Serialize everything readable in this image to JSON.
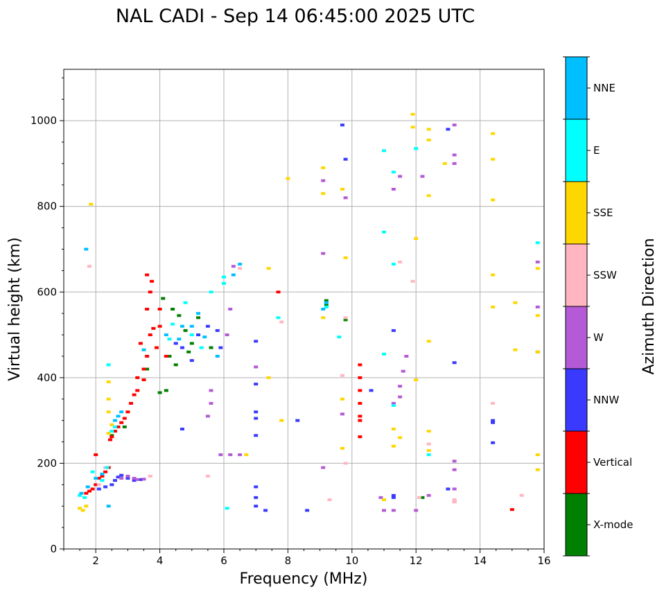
{
  "chart_data": {
    "type": "scatter",
    "title": "NAL CADI - Sep 14 06:45:00 2025 UTC",
    "xlabel": "Frequency (MHz)",
    "ylabel": "Virtual height (km)",
    "xlim": [
      1,
      16
    ],
    "ylim": [
      0,
      1120
    ],
    "xticks": [
      2,
      4,
      6,
      8,
      10,
      12,
      14,
      16
    ],
    "yticks": [
      0,
      200,
      400,
      600,
      800,
      1000
    ],
    "xtick_labels": [
      "2",
      "4",
      "6",
      "8",
      "10",
      "12",
      "14",
      "16"
    ],
    "ytick_labels": [
      "0",
      "200",
      "400",
      "600",
      "800",
      "1000"
    ],
    "grid": true,
    "colorbar": {
      "label": "Azimuth Direction",
      "categories": [
        {
          "name": "X-mode",
          "color": "#008000"
        },
        {
          "name": "Vertical",
          "color": "#ff0000"
        },
        {
          "name": "NNW",
          "color": "#3a3aff"
        },
        {
          "name": "W",
          "color": "#b45ad6"
        },
        {
          "name": "SSW",
          "color": "#ffb6c1"
        },
        {
          "name": "SSE",
          "color": "#ffd700"
        },
        {
          "name": "E",
          "color": "#00ffff"
        },
        {
          "name": "NNE",
          "color": "#00bfff"
        }
      ]
    },
    "series": [
      {
        "name": "X-mode",
        "points": [
          [
            4.3,
            450
          ],
          [
            4.5,
            430
          ],
          [
            4.6,
            545
          ],
          [
            4.4,
            560
          ],
          [
            4.8,
            510
          ],
          [
            5.0,
            480
          ],
          [
            5.2,
            540
          ],
          [
            4.2,
            370
          ],
          [
            4.0,
            365
          ],
          [
            3.6,
            420
          ],
          [
            2.5,
            265
          ],
          [
            2.9,
            285
          ],
          [
            12.2,
            120
          ],
          [
            15.8,
            460
          ],
          [
            9.2,
            570
          ],
          [
            9.2,
            580
          ],
          [
            9.8,
            535
          ],
          [
            4.1,
            585
          ],
          [
            5.6,
            470
          ],
          [
            4.9,
            460
          ]
        ]
      },
      {
        "name": "Vertical",
        "points": [
          [
            3.5,
            420
          ],
          [
            3.6,
            450
          ],
          [
            3.4,
            480
          ],
          [
            3.3,
            400
          ],
          [
            3.2,
            360
          ],
          [
            3.1,
            340
          ],
          [
            3.0,
            320
          ],
          [
            2.9,
            305
          ],
          [
            2.8,
            295
          ],
          [
            2.7,
            285
          ],
          [
            2.6,
            275
          ],
          [
            2.5,
            262
          ],
          [
            2.45,
            255
          ],
          [
            3.7,
            500
          ],
          [
            3.8,
            515
          ],
          [
            3.6,
            560
          ],
          [
            3.7,
            600
          ],
          [
            3.75,
            625
          ],
          [
            3.6,
            640
          ],
          [
            3.9,
            470
          ],
          [
            4.0,
            560
          ],
          [
            4.0,
            520
          ],
          [
            4.2,
            450
          ],
          [
            3.5,
            395
          ],
          [
            3.3,
            370
          ],
          [
            2.4,
            190
          ],
          [
            2.3,
            180
          ],
          [
            2.2,
            170
          ],
          [
            2.0,
            150
          ],
          [
            1.9,
            140
          ],
          [
            1.8,
            135
          ],
          [
            1.7,
            130
          ],
          [
            2.1,
            165
          ],
          [
            2.0,
            220
          ],
          [
            10.25,
            430
          ],
          [
            10.25,
            400
          ],
          [
            10.25,
            370
          ],
          [
            10.25,
            340
          ],
          [
            10.25,
            310
          ],
          [
            10.25,
            300
          ],
          [
            10.25,
            262
          ],
          [
            15.0,
            92
          ],
          [
            13.2,
            110
          ],
          [
            7.7,
            600
          ]
        ]
      },
      {
        "name": "NNW",
        "points": [
          [
            2.6,
            160
          ],
          [
            2.7,
            168
          ],
          [
            2.8,
            172
          ],
          [
            3.0,
            165
          ],
          [
            3.2,
            160
          ],
          [
            3.4,
            162
          ],
          [
            2.5,
            150
          ],
          [
            2.3,
            145
          ],
          [
            2.1,
            140
          ],
          [
            4.5,
            480
          ],
          [
            4.7,
            470
          ],
          [
            5.0,
            440
          ],
          [
            5.2,
            500
          ],
          [
            5.5,
            520
          ],
          [
            5.8,
            510
          ],
          [
            5.9,
            470
          ],
          [
            7.0,
            485
          ],
          [
            7.0,
            320
          ],
          [
            7.0,
            305
          ],
          [
            7.0,
            265
          ],
          [
            7.0,
            385
          ],
          [
            7.0,
            145
          ],
          [
            7.0,
            120
          ],
          [
            7.0,
            100
          ],
          [
            7.3,
            90
          ],
          [
            8.6,
            90
          ],
          [
            9.7,
            990
          ],
          [
            10.6,
            370
          ],
          [
            11.3,
            510
          ],
          [
            11.3,
            125
          ],
          [
            11.3,
            120
          ],
          [
            13.0,
            140
          ],
          [
            13.0,
            980
          ],
          [
            14.4,
            300
          ],
          [
            14.4,
            295
          ],
          [
            14.4,
            248
          ],
          [
            4.7,
            280
          ],
          [
            9.8,
            910
          ],
          [
            8.3,
            300
          ],
          [
            13.2,
            435
          ]
        ]
      },
      {
        "name": "W",
        "points": [
          [
            2.8,
            165
          ],
          [
            3.0,
            170
          ],
          [
            3.2,
            165
          ],
          [
            3.3,
            162
          ],
          [
            3.5,
            163
          ],
          [
            5.6,
            370
          ],
          [
            5.6,
            340
          ],
          [
            5.5,
            310
          ],
          [
            5.9,
            220
          ],
          [
            6.2,
            220
          ],
          [
            6.5,
            220
          ],
          [
            6.1,
            500
          ],
          [
            6.2,
            560
          ],
          [
            6.3,
            660
          ],
          [
            7.0,
            425
          ],
          [
            9.1,
            860
          ],
          [
            9.1,
            690
          ],
          [
            9.1,
            190
          ],
          [
            9.7,
            315
          ],
          [
            9.8,
            820
          ],
          [
            10.9,
            120
          ],
          [
            11.0,
            90
          ],
          [
            11.3,
            90
          ],
          [
            11.3,
            340
          ],
          [
            11.5,
            380
          ],
          [
            11.5,
            355
          ],
          [
            11.6,
            415
          ],
          [
            11.7,
            450
          ],
          [
            11.5,
            870
          ],
          [
            12.0,
            90
          ],
          [
            12.2,
            870
          ],
          [
            12.4,
            125
          ],
          [
            13.2,
            990
          ],
          [
            13.2,
            920
          ],
          [
            13.2,
            900
          ],
          [
            13.2,
            205
          ],
          [
            13.2,
            185
          ],
          [
            13.2,
            140
          ],
          [
            15.8,
            670
          ],
          [
            15.8,
            565
          ],
          [
            11.3,
            840
          ]
        ]
      },
      {
        "name": "SSW",
        "points": [
          [
            1.8,
            660
          ],
          [
            2.1,
            150
          ],
          [
            2.3,
            190
          ],
          [
            3.7,
            170
          ],
          [
            5.5,
            170
          ],
          [
            6.5,
            655
          ],
          [
            7.8,
            530
          ],
          [
            9.8,
            200
          ],
          [
            9.8,
            540
          ],
          [
            11.5,
            670
          ],
          [
            11.9,
            625
          ],
          [
            12.1,
            120
          ],
          [
            12.4,
            245
          ],
          [
            13.2,
            110
          ],
          [
            13.2,
            115
          ],
          [
            14.4,
            340
          ],
          [
            15.3,
            125
          ],
          [
            9.3,
            115
          ],
          [
            9.7,
            405
          ]
        ]
      },
      {
        "name": "SSE",
        "points": [
          [
            1.5,
            95
          ],
          [
            1.6,
            90
          ],
          [
            1.7,
            100
          ],
          [
            2.4,
            390
          ],
          [
            2.4,
            350
          ],
          [
            2.4,
            320
          ],
          [
            2.5,
            290
          ],
          [
            2.4,
            270
          ],
          [
            1.85,
            805
          ],
          [
            6.7,
            220
          ],
          [
            7.4,
            400
          ],
          [
            7.4,
            655
          ],
          [
            7.8,
            300
          ],
          [
            8.0,
            865
          ],
          [
            9.1,
            890
          ],
          [
            9.1,
            830
          ],
          [
            9.1,
            540
          ],
          [
            9.7,
            840
          ],
          [
            9.8,
            680
          ],
          [
            9.7,
            350
          ],
          [
            9.7,
            235
          ],
          [
            11.0,
            115
          ],
          [
            11.3,
            240
          ],
          [
            11.3,
            280
          ],
          [
            11.5,
            260
          ],
          [
            11.9,
            1015
          ],
          [
            11.9,
            985
          ],
          [
            12.0,
            725
          ],
          [
            12.0,
            395
          ],
          [
            12.4,
            980
          ],
          [
            12.4,
            955
          ],
          [
            12.4,
            825
          ],
          [
            12.4,
            485
          ],
          [
            12.4,
            275
          ],
          [
            12.4,
            230
          ],
          [
            12.9,
            900
          ],
          [
            14.4,
            970
          ],
          [
            14.4,
            910
          ],
          [
            14.4,
            815
          ],
          [
            14.4,
            640
          ],
          [
            14.4,
            565
          ],
          [
            15.1,
            575
          ],
          [
            15.1,
            465
          ],
          [
            15.8,
            655
          ],
          [
            15.8,
            545
          ],
          [
            15.8,
            460
          ],
          [
            15.8,
            220
          ],
          [
            15.8,
            185
          ]
        ]
      },
      {
        "name": "E",
        "points": [
          [
            1.65,
            120
          ],
          [
            1.9,
            180
          ],
          [
            2.2,
            160
          ],
          [
            2.35,
            190
          ],
          [
            2.5,
            275
          ],
          [
            2.6,
            285
          ],
          [
            4.3,
            490
          ],
          [
            4.4,
            525
          ],
          [
            4.8,
            575
          ],
          [
            5.0,
            500
          ],
          [
            5.3,
            470
          ],
          [
            5.6,
            600
          ],
          [
            6.0,
            620
          ],
          [
            6.0,
            635
          ],
          [
            6.1,
            95
          ],
          [
            7.7,
            540
          ],
          [
            9.2,
            565
          ],
          [
            9.6,
            495
          ],
          [
            11.0,
            930
          ],
          [
            11.0,
            740
          ],
          [
            11.0,
            455
          ],
          [
            11.3,
            880
          ],
          [
            11.3,
            665
          ],
          [
            11.3,
            335
          ],
          [
            12.0,
            935
          ],
          [
            12.4,
            220
          ],
          [
            15.8,
            715
          ],
          [
            2.4,
            430
          ],
          [
            1.5,
            125
          ]
        ]
      },
      {
        "name": "NNE",
        "points": [
          [
            1.55,
            130
          ],
          [
            1.75,
            145
          ],
          [
            2.0,
            165
          ],
          [
            2.2,
            175
          ],
          [
            2.6,
            300
          ],
          [
            2.7,
            310
          ],
          [
            2.8,
            320
          ],
          [
            3.5,
            465
          ],
          [
            4.2,
            500
          ],
          [
            4.6,
            490
          ],
          [
            4.7,
            520
          ],
          [
            5.0,
            520
          ],
          [
            5.2,
            550
          ],
          [
            5.4,
            495
          ],
          [
            5.8,
            450
          ],
          [
            6.3,
            640
          ],
          [
            6.5,
            665
          ],
          [
            1.7,
            700
          ],
          [
            2.4,
            100
          ],
          [
            9.1,
            560
          ],
          [
            9.2,
            575
          ]
        ]
      }
    ]
  }
}
